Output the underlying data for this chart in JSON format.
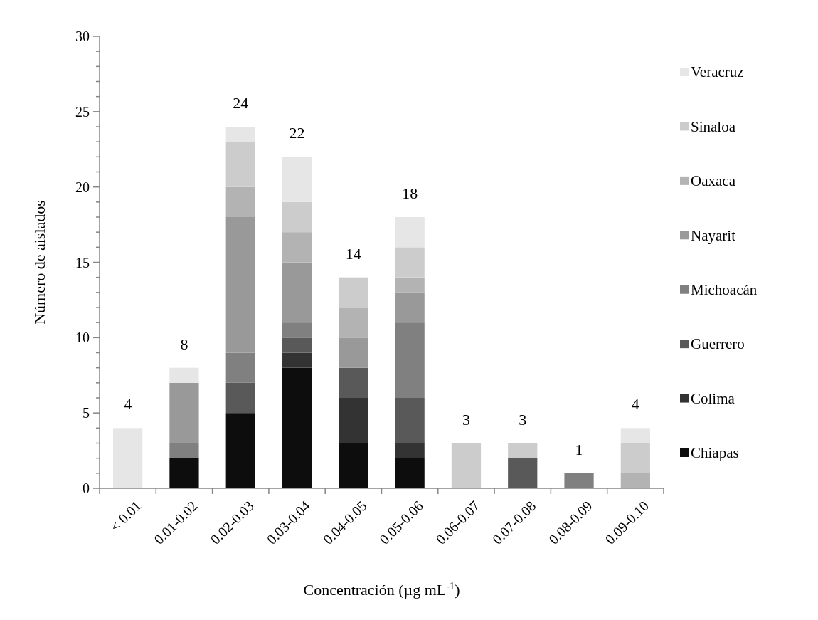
{
  "chart_data": {
    "type": "bar",
    "stacked": true,
    "xlabel": "Concentración (µg mL$^{-1}$)",
    "ylabel": "Número de aislados",
    "categories": [
      "< 0.01",
      "0.01-0.02",
      "0.02-0.03",
      "0.03-0.04",
      "0.04-0.05",
      "0.05-0.06",
      "0.06-0.07",
      "0.07-0.08",
      "0.08-0.09",
      "0.09-0.10"
    ],
    "series": [
      {
        "name": "Chiapas",
        "color": "#0d0d0d",
        "values": [
          0,
          2,
          5,
          8,
          3,
          2,
          0,
          0,
          0,
          0
        ]
      },
      {
        "name": "Colima",
        "color": "#333333",
        "values": [
          0,
          0,
          0,
          1,
          3,
          1,
          0,
          0,
          0,
          0
        ]
      },
      {
        "name": "Guerrero",
        "color": "#595959",
        "values": [
          0,
          0,
          2,
          1,
          2,
          3,
          0,
          2,
          0,
          0
        ]
      },
      {
        "name": "Michoacán",
        "color": "#808080",
        "values": [
          0,
          1,
          2,
          1,
          0,
          5,
          0,
          0,
          1,
          0
        ]
      },
      {
        "name": "Nayarit",
        "color": "#999999",
        "values": [
          0,
          4,
          9,
          4,
          2,
          2,
          0,
          0,
          0,
          0
        ]
      },
      {
        "name": "Oaxaca",
        "color": "#b3b3b3",
        "values": [
          0,
          0,
          2,
          2,
          2,
          1,
          0,
          0,
          0,
          1
        ]
      },
      {
        "name": "Sinaloa",
        "color": "#cccccc",
        "values": [
          0,
          0,
          3,
          2,
          2,
          2,
          3,
          1,
          0,
          2
        ]
      },
      {
        "name": "Veracruz",
        "color": "#e6e6e6",
        "values": [
          4,
          1,
          1,
          3,
          0,
          2,
          0,
          0,
          0,
          1
        ]
      }
    ],
    "totals": [
      "4",
      "8",
      "24",
      "22",
      "14",
      "18",
      "3",
      "3",
      "1",
      "4"
    ],
    "ylim": [
      0,
      30
    ],
    "yticks": [
      0,
      {
        "value": 1,
        "label": null
      },
      {
        "value": 2,
        "label": null
      },
      {
        "value": 3,
        "label": null
      },
      {
        "value": 4,
        "label": null
      },
      5,
      {
        "value": 6,
        "label": null
      },
      {
        "value": 7,
        "label": null
      },
      {
        "value": 8,
        "label": null
      },
      {
        "value": 9,
        "label": null
      },
      10,
      {
        "value": 11,
        "label": null
      },
      {
        "value": 12,
        "label": null
      },
      {
        "value": 13,
        "label": null
      },
      {
        "value": 14,
        "label": null
      },
      15,
      {
        "value": 16,
        "label": null
      },
      {
        "value": 17,
        "label": null
      },
      {
        "value": 18,
        "label": null
      },
      {
        "value": 19,
        "label": null
      },
      20,
      {
        "value": 21,
        "label": null
      },
      {
        "value": 22,
        "label": null
      },
      {
        "value": 23,
        "label": null
      },
      {
        "value": 24,
        "label": null
      },
      25,
      {
        "value": 26,
        "label": null
      },
      {
        "value": 27,
        "label": null
      },
      {
        "value": 28,
        "label": null
      },
      {
        "value": 29,
        "label": null
      },
      30
    ],
    "grid": false,
    "legend": "right"
  }
}
